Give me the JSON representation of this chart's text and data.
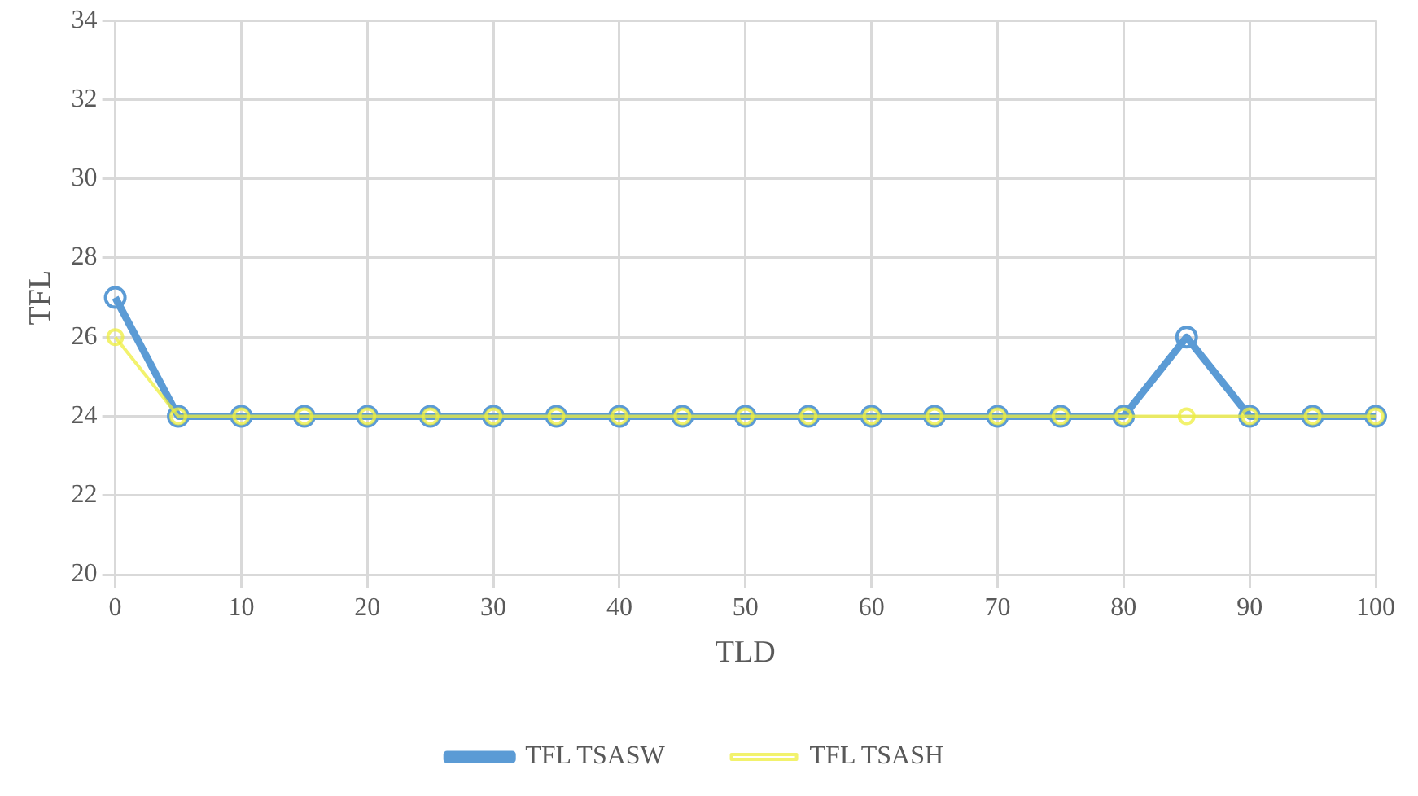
{
  "chart_data": {
    "type": "line",
    "xlabel": "TLD",
    "ylabel": "TFL",
    "x": [
      0,
      5,
      10,
      15,
      20,
      25,
      30,
      35,
      40,
      45,
      50,
      55,
      60,
      65,
      70,
      75,
      80,
      85,
      90,
      95,
      100
    ],
    "series": [
      {
        "name": "TFL TSASW",
        "color": "#5b9bd5",
        "values": [
          27,
          24,
          24,
          24,
          24,
          24,
          24,
          24,
          24,
          24,
          24,
          24,
          24,
          24,
          24,
          24,
          24,
          26,
          24,
          24,
          24
        ]
      },
      {
        "name": "TFL TSASH",
        "color": "#eeee3c",
        "values": [
          26,
          24,
          24,
          24,
          24,
          24,
          24,
          24,
          24,
          24,
          24,
          24,
          24,
          24,
          24,
          24,
          24,
          24,
          24,
          24,
          24
        ]
      }
    ],
    "xlim": [
      0,
      100
    ],
    "xticks": [
      0,
      10,
      20,
      30,
      40,
      50,
      60,
      70,
      80,
      90,
      100
    ],
    "ylim": [
      20,
      34
    ],
    "yticks": [
      20,
      22,
      24,
      26,
      28,
      30,
      32,
      34
    ],
    "grid": true,
    "legend": "bottom",
    "marker": "circle",
    "line_style": "solid"
  }
}
